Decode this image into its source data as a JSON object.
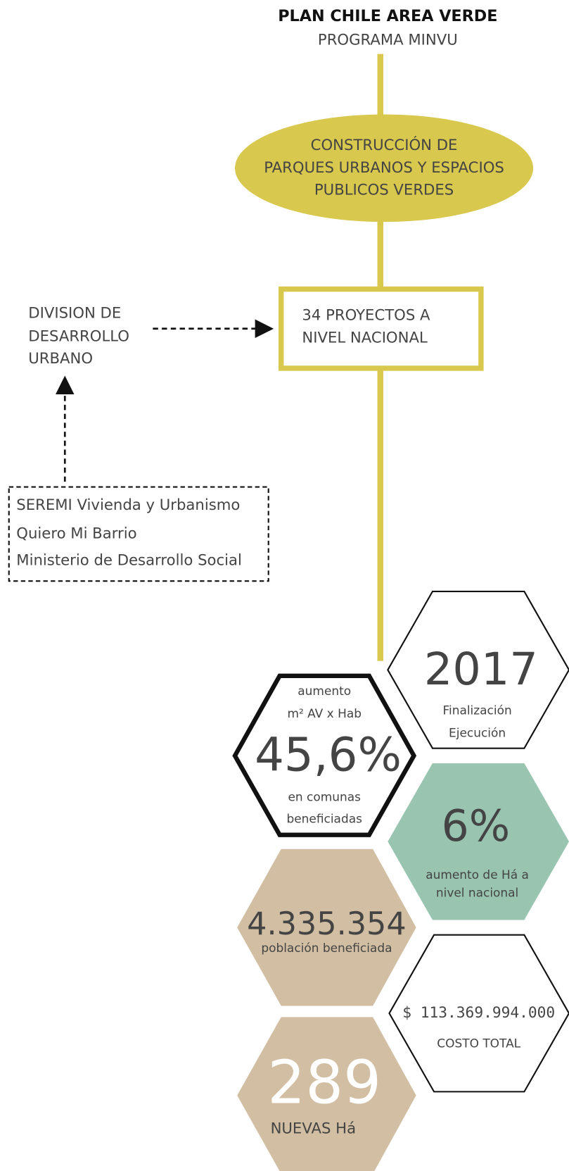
{
  "header": {
    "title": "PLAN CHILE AREA VERDE",
    "subtitle": "PROGRAMA MINVU"
  },
  "ellipse": {
    "lines": [
      "CONSTRUCCIÓN DE",
      "PARQUES URBANOS Y ESPACIOS",
      "PUBLICOS VERDES"
    ]
  },
  "box": {
    "lines": [
      "34 PROYECTOS A",
      "NIVEL NACIONAL"
    ]
  },
  "division": {
    "lines": [
      "DIVISION DE",
      "DESARROLLO",
      "URBANO"
    ]
  },
  "partners": {
    "lines": [
      "SEREMI Vivienda y Urbanismo",
      "Quiero Mi Barrio",
      "Ministerio de Desarrollo Social"
    ]
  },
  "stats": [
    {
      "top": "aumento",
      "unit": "m² AV x Hab",
      "value": "45,6%",
      "bottom": [
        "en comunas",
        "beneficiadas"
      ]
    },
    {
      "value": "2017",
      "bottom": [
        "Finalización",
        "Ejecución"
      ]
    },
    {
      "value": "6%",
      "bottom": [
        "aumento de Há a",
        "nivel nacional"
      ]
    },
    {
      "value": "4.335.354",
      "bottom": [
        "población beneficiada"
      ]
    },
    {
      "value": "$ 113.369.994.000",
      "bottom": [
        "COSTO TOTAL"
      ]
    },
    {
      "value": "289",
      "bottom": [
        "NUEVAS Há"
      ]
    }
  ]
}
